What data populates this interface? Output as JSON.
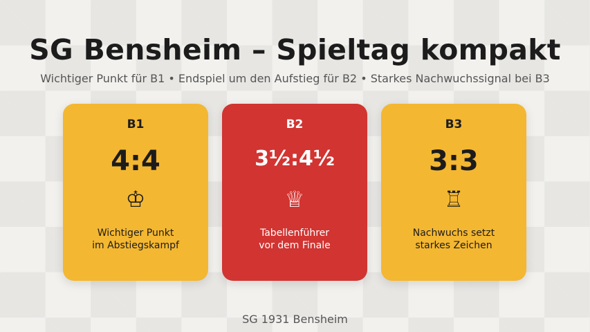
{
  "title": "SG Bensheim – Spieltag kompakt",
  "subtitle": "Wichtiger Punkt für B1 • Endspiel um den Aufstieg für B2 • Starkes Nachwuchssignal bei B3",
  "cards": [
    {
      "team": "B1",
      "score": "4:4",
      "icon": "chess-king-icon",
      "glyph": "♔",
      "desc1": "Wichtiger Punkt",
      "desc2": "im Abstiegskampf",
      "color": "#f4b731"
    },
    {
      "team": "B2",
      "score": "3½:4½",
      "icon": "chess-queen-icon",
      "glyph": "♕",
      "desc1": "Tabellenführer",
      "desc2": "vor dem Finale",
      "color": "#d13431"
    },
    {
      "team": "B3",
      "score": "3:3",
      "icon": "chess-rook-icon",
      "glyph": "♖",
      "desc1": "Nachwuchs setzt",
      "desc2": "starkes Zeichen",
      "color": "#f4b731"
    }
  ],
  "footer": "SG 1931 Bensheim"
}
